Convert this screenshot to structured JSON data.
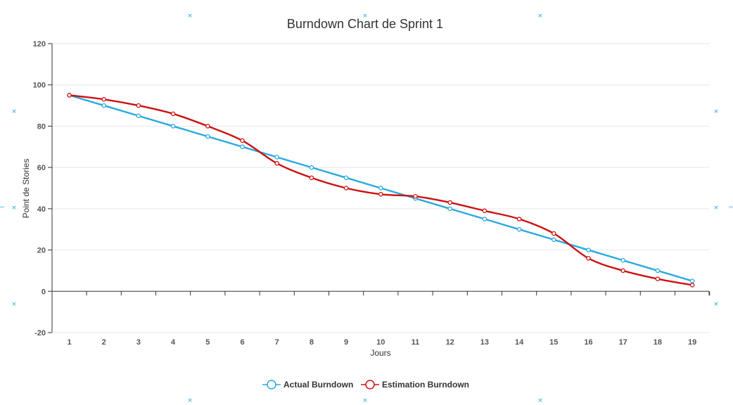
{
  "chart_data": {
    "type": "line",
    "title": "Burndown Chart de Sprint 1",
    "xlabel": "Jours",
    "ylabel": "Point de Stories",
    "x": [
      1,
      2,
      3,
      4,
      5,
      6,
      7,
      8,
      9,
      10,
      11,
      12,
      13,
      14,
      15,
      16,
      17,
      18,
      19
    ],
    "ylim": [
      -20,
      120
    ],
    "yticks": [
      -20,
      0,
      20,
      40,
      60,
      80,
      100,
      120
    ],
    "grid": true,
    "legend_position": "bottom-center",
    "series": [
      {
        "name": "Actual Burndown",
        "color": "#29a9e0",
        "values": [
          95,
          90,
          85,
          80,
          75,
          70,
          65,
          60,
          55,
          50,
          45,
          40,
          35,
          30,
          25,
          20,
          15,
          10,
          5
        ]
      },
      {
        "name": "Estimation Burndown",
        "color": "#cc1111",
        "values": [
          95,
          93,
          90,
          86,
          80,
          73,
          62,
          55,
          50,
          47,
          46,
          43,
          39,
          35,
          28,
          16,
          10,
          6,
          3
        ]
      }
    ]
  }
}
